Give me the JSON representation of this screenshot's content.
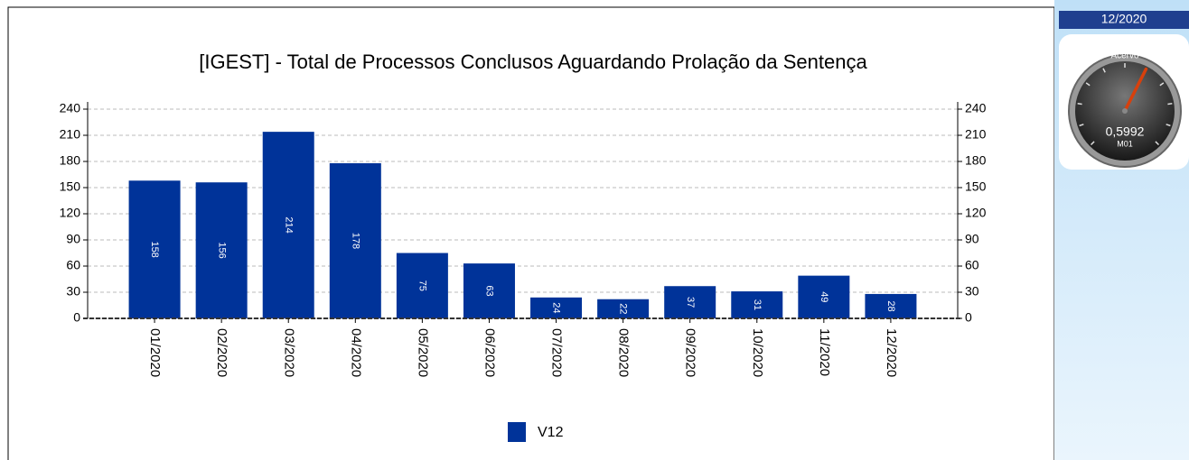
{
  "chart_data": [
    {
      "type": "bar",
      "title": "[IGEST]  - Total de Processos Conclusos Aguardando Prolação da Sentença",
      "categories": [
        "01/2020",
        "02/2020",
        "03/2020",
        "04/2020",
        "05/2020",
        "06/2020",
        "07/2020",
        "08/2020",
        "09/2020",
        "10/2020",
        "11/2020",
        "12/2020"
      ],
      "series": [
        {
          "name": "V12",
          "color": "#003399",
          "values": [
            158,
            156,
            214,
            178,
            75,
            63,
            24,
            22,
            37,
            31,
            49,
            28
          ]
        }
      ],
      "ylim": [
        0,
        240
      ],
      "yticks": [
        0,
        30,
        60,
        90,
        120,
        150,
        180,
        210,
        240
      ],
      "y2lim": [
        0,
        240
      ],
      "y2ticks": [
        0,
        30,
        60,
        90,
        120,
        150,
        180,
        210,
        240
      ],
      "grid": true,
      "legend": "bottom"
    },
    {
      "type": "gauge",
      "period": "12/2020",
      "title": "Acervo",
      "subtitle": "M01",
      "value": 0.5992,
      "value_label": "0,5992",
      "ylim": [
        0,
        1
      ]
    }
  ]
}
